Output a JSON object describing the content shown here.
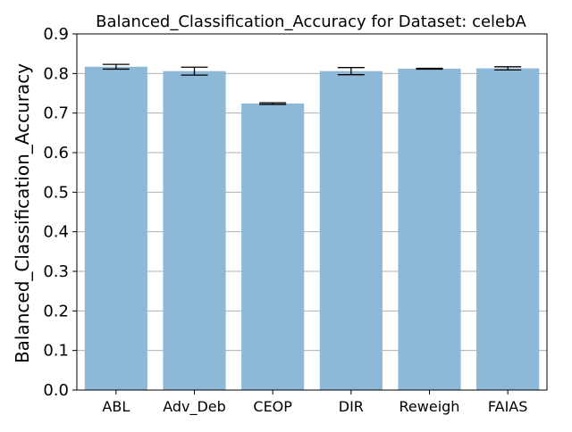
{
  "chart_data": {
    "type": "bar",
    "title": "Balanced_Classification_Accuracy for Dataset: celebA",
    "xlabel": "",
    "ylabel": "Balanced_Classification_Accuracy",
    "categories": [
      "ABL",
      "Adv_Deb",
      "CEOP",
      "DIR",
      "Reweigh",
      "FAIAS"
    ],
    "values": [
      0.817,
      0.806,
      0.724,
      0.806,
      0.812,
      0.813
    ],
    "errors": [
      0.006,
      0.01,
      0.002,
      0.009,
      0.001,
      0.004
    ],
    "ylim": [
      0.0,
      0.9
    ],
    "yticks": [
      "0.0",
      "0.1",
      "0.2",
      "0.3",
      "0.4",
      "0.5",
      "0.6",
      "0.7",
      "0.8",
      "0.9"
    ],
    "grid": "y",
    "bar_color": "#8db8d8",
    "grid_color": "#b0b0b0",
    "errorbar_color": "#000000"
  }
}
